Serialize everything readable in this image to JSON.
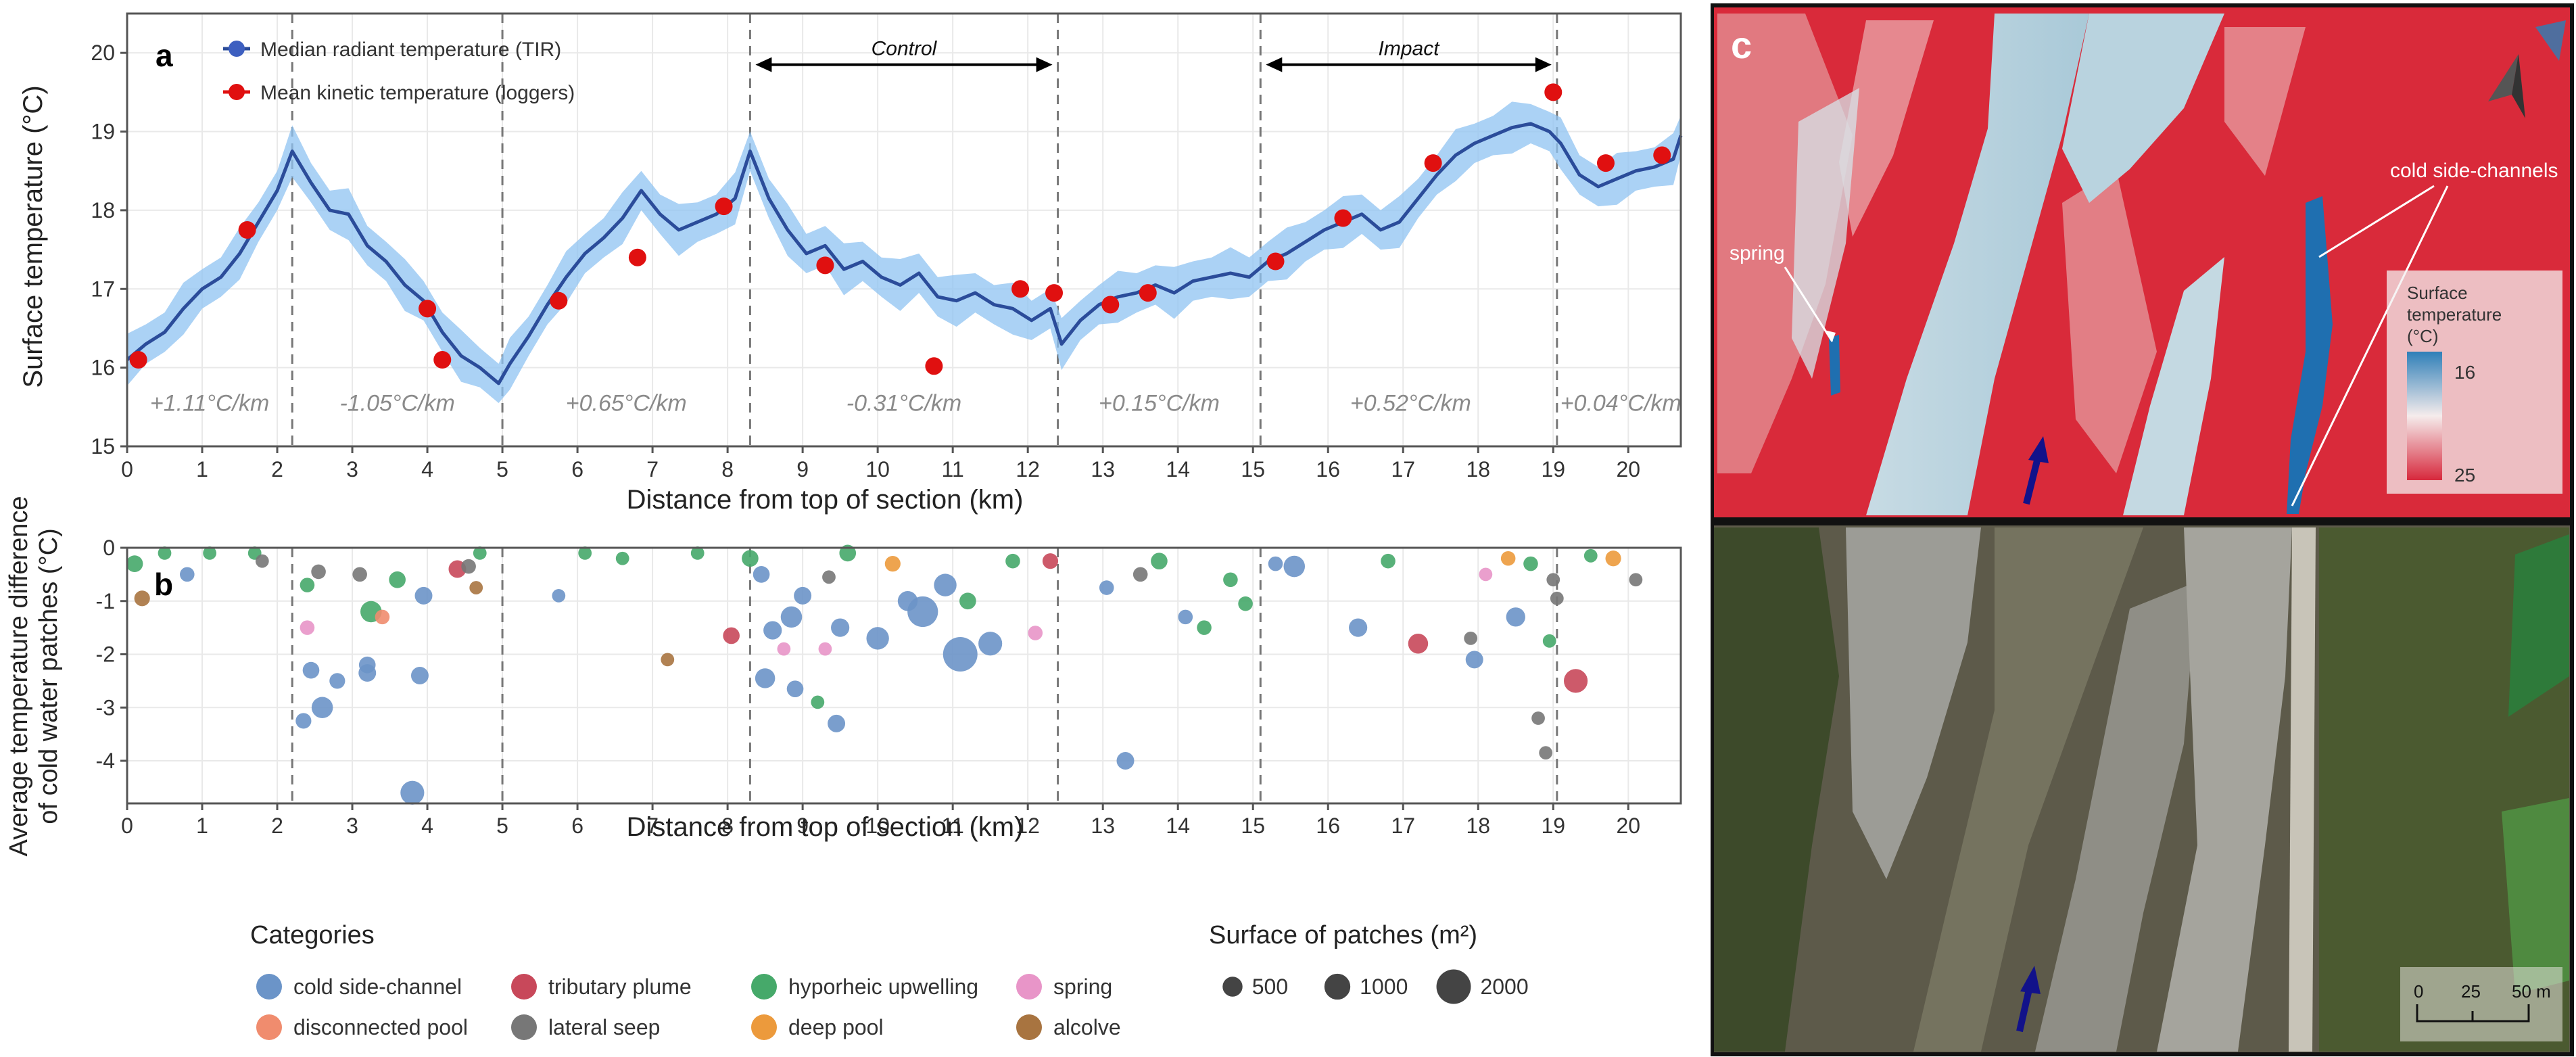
{
  "chart_data": [
    {
      "panel_label": "a",
      "type": "line",
      "ylabel": "Surface temperature (°C)",
      "xlabel": "Distance from top of section (km)",
      "xlim": [
        0,
        20.7
      ],
      "ylim": [
        15,
        20.5
      ],
      "xticks": [
        0,
        1,
        2,
        3,
        4,
        5,
        6,
        7,
        8,
        9,
        10,
        11,
        12,
        13,
        14,
        15,
        16,
        17,
        18,
        19,
        20
      ],
      "yticks": [
        15,
        16,
        17,
        18,
        19,
        20
      ],
      "segment_boundaries_km": [
        2.2,
        5.0,
        8.3,
        12.4,
        15.1,
        19.05
      ],
      "gradients": [
        {
          "label": "+1.11°C/km",
          "x": 1.1
        },
        {
          "label": "-1.05°C/km",
          "x": 3.6
        },
        {
          "label": "+0.65°C/km",
          "x": 6.65
        },
        {
          "label": "-0.31°C/km",
          "x": 10.35
        },
        {
          "label": "+0.15°C/km",
          "x": 13.75
        },
        {
          "label": "+0.52°C/km",
          "x": 17.1
        },
        {
          "label": "+0.04°C/km",
          "x": 19.9
        }
      ],
      "arrows": [
        {
          "label": "Control",
          "x0": 8.3,
          "x1": 12.4
        },
        {
          "label": "Impact",
          "x0": 15.1,
          "x1": 19.05
        }
      ],
      "legend": {
        "tir": "Median radiant temperature (TIR)",
        "loggers": "Mean kinetic temperature (loggers)"
      },
      "series_tir": {
        "name": "Median radiant temperature (TIR)",
        "color": "#2b4c9a",
        "band_color": "#8fc3f2",
        "x": [
          0,
          0.25,
          0.5,
          0.75,
          1.0,
          1.25,
          1.5,
          1.75,
          2.0,
          2.2,
          2.45,
          2.7,
          2.95,
          3.2,
          3.45,
          3.7,
          3.95,
          4.2,
          4.45,
          4.7,
          4.95,
          5.1,
          5.35,
          5.6,
          5.85,
          6.1,
          6.35,
          6.6,
          6.85,
          7.1,
          7.35,
          7.6,
          7.85,
          8.1,
          8.3,
          8.55,
          8.8,
          9.05,
          9.3,
          9.55,
          9.8,
          10.05,
          10.3,
          10.55,
          10.8,
          11.05,
          11.3,
          11.55,
          11.8,
          12.05,
          12.3,
          12.45,
          12.7,
          12.95,
          13.2,
          13.45,
          13.7,
          13.95,
          14.2,
          14.45,
          14.7,
          14.95,
          15.2,
          15.45,
          15.7,
          15.95,
          16.2,
          16.45,
          16.7,
          16.95,
          17.2,
          17.45,
          17.7,
          17.95,
          18.2,
          18.45,
          18.7,
          18.95,
          19.1,
          19.35,
          19.6,
          19.85,
          20.1,
          20.35,
          20.6,
          20.7
        ],
        "values": [
          16.1,
          16.3,
          16.45,
          16.75,
          17.0,
          17.15,
          17.45,
          17.85,
          18.25,
          18.75,
          18.35,
          18.0,
          17.95,
          17.55,
          17.35,
          17.05,
          16.85,
          16.45,
          16.15,
          16.0,
          15.8,
          16.05,
          16.4,
          16.8,
          17.15,
          17.45,
          17.65,
          17.9,
          18.25,
          17.95,
          17.75,
          17.85,
          17.95,
          18.15,
          18.75,
          18.15,
          17.75,
          17.45,
          17.55,
          17.25,
          17.35,
          17.15,
          17.05,
          17.2,
          16.9,
          16.85,
          16.95,
          16.8,
          16.75,
          16.6,
          16.75,
          16.3,
          16.6,
          16.8,
          16.9,
          16.95,
          17.05,
          16.95,
          17.1,
          17.15,
          17.2,
          17.15,
          17.35,
          17.45,
          17.6,
          17.75,
          17.85,
          17.95,
          17.75,
          17.85,
          18.15,
          18.45,
          18.7,
          18.85,
          18.95,
          19.05,
          19.1,
          19.0,
          18.85,
          18.45,
          18.3,
          18.4,
          18.5,
          18.55,
          18.65,
          18.95
        ],
        "band_halfwidth": 0.25
      },
      "series_loggers": {
        "name": "Mean kinetic temperature (loggers)",
        "color": "#e01010",
        "points": [
          [
            0.15,
            16.1
          ],
          [
            1.6,
            17.75
          ],
          [
            4.0,
            16.75
          ],
          [
            4.2,
            16.1
          ],
          [
            5.75,
            16.85
          ],
          [
            6.8,
            17.4
          ],
          [
            7.95,
            18.05
          ],
          [
            9.3,
            17.3
          ],
          [
            10.75,
            16.02
          ],
          [
            11.9,
            17.0
          ],
          [
            12.35,
            16.95
          ],
          [
            13.1,
            16.8
          ],
          [
            13.6,
            16.95
          ],
          [
            15.3,
            17.35
          ],
          [
            16.2,
            17.9
          ],
          [
            17.4,
            18.6
          ],
          [
            19.0,
            19.5
          ],
          [
            19.7,
            18.6
          ],
          [
            20.45,
            18.7
          ]
        ]
      }
    },
    {
      "panel_label": "b",
      "type": "scatter",
      "ylabel_line1": "Average temperature difference",
      "ylabel_line2": "of cold water patches (°C)",
      "xlabel": "Distance from top of section (km)",
      "xlim": [
        0,
        20.7
      ],
      "ylim": [
        -4.8,
        0
      ],
      "xticks": [
        0,
        1,
        2,
        3,
        4,
        5,
        6,
        7,
        8,
        9,
        10,
        11,
        12,
        13,
        14,
        15,
        16,
        17,
        18,
        19,
        20
      ],
      "yticks": [
        0,
        -1,
        -2,
        -3,
        -4
      ],
      "segment_boundaries_km": [
        2.2,
        5.0,
        8.3,
        12.4,
        15.1,
        19.05
      ],
      "points": [
        {
          "x": 0.1,
          "y": -0.3,
          "cat": "hyporheic upwelling",
          "s": 300
        },
        {
          "x": 0.2,
          "y": -0.95,
          "cat": "alcolve",
          "s": 250
        },
        {
          "x": 0.5,
          "y": -0.1,
          "cat": "hyporheic upwelling",
          "s": 150
        },
        {
          "x": 0.8,
          "y": -0.5,
          "cat": "cold side-channel",
          "s": 200
        },
        {
          "x": 1.1,
          "y": -0.1,
          "cat": "hyporheic upwelling",
          "s": 150
        },
        {
          "x": 1.7,
          "y": -0.1,
          "cat": "hyporheic upwelling",
          "s": 150
        },
        {
          "x": 1.8,
          "y": -0.25,
          "cat": "lateral seep",
          "s": 150
        },
        {
          "x": 2.4,
          "y": -0.7,
          "cat": "hyporheic upwelling",
          "s": 200
        },
        {
          "x": 2.4,
          "y": -1.5,
          "cat": "spring",
          "s": 200
        },
        {
          "x": 2.35,
          "y": -3.25,
          "cat": "cold side-channel",
          "s": 250
        },
        {
          "x": 2.45,
          "y": -2.3,
          "cat": "cold side-channel",
          "s": 300
        },
        {
          "x": 2.55,
          "y": -0.45,
          "cat": "lateral seep",
          "s": 200
        },
        {
          "x": 2.6,
          "y": -3.0,
          "cat": "cold side-channel",
          "s": 600
        },
        {
          "x": 2.8,
          "y": -2.5,
          "cat": "cold side-channel",
          "s": 250
        },
        {
          "x": 3.1,
          "y": -0.5,
          "cat": "lateral seep",
          "s": 200
        },
        {
          "x": 3.2,
          "y": -2.2,
          "cat": "cold side-channel",
          "s": 300
        },
        {
          "x": 3.25,
          "y": -1.2,
          "cat": "hyporheic upwelling",
          "s": 600
        },
        {
          "x": 3.4,
          "y": -1.3,
          "cat": "disconnected pool",
          "s": 200
        },
        {
          "x": 3.2,
          "y": -2.35,
          "cat": "cold side-channel",
          "s": 350
        },
        {
          "x": 3.6,
          "y": -0.6,
          "cat": "hyporheic upwelling",
          "s": 300
        },
        {
          "x": 3.8,
          "y": -4.6,
          "cat": "cold side-channel",
          "s": 800
        },
        {
          "x": 3.9,
          "y": -2.4,
          "cat": "cold side-channel",
          "s": 350
        },
        {
          "x": 3.95,
          "y": -0.9,
          "cat": "cold side-channel",
          "s": 350
        },
        {
          "x": 4.4,
          "y": -0.4,
          "cat": "tributary plume",
          "s": 350
        },
        {
          "x": 4.55,
          "y": -0.35,
          "cat": "lateral seep",
          "s": 200
        },
        {
          "x": 4.65,
          "y": -0.75,
          "cat": "alcolve",
          "s": 150
        },
        {
          "x": 4.7,
          "y": -0.1,
          "cat": "hyporheic upwelling",
          "s": 150
        },
        {
          "x": 5.75,
          "y": -0.9,
          "cat": "cold side-channel",
          "s": 150
        },
        {
          "x": 6.1,
          "y": -0.1,
          "cat": "hyporheic upwelling",
          "s": 150
        },
        {
          "x": 6.6,
          "y": -0.2,
          "cat": "hyporheic upwelling",
          "s": 150
        },
        {
          "x": 7.2,
          "y": -2.1,
          "cat": "alcolve",
          "s": 150
        },
        {
          "x": 7.6,
          "y": -0.1,
          "cat": "hyporheic upwelling",
          "s": 150
        },
        {
          "x": 8.05,
          "y": -1.65,
          "cat": "tributary plume",
          "s": 300
        },
        {
          "x": 8.3,
          "y": -0.2,
          "cat": "hyporheic upwelling",
          "s": 300
        },
        {
          "x": 8.45,
          "y": -0.5,
          "cat": "cold side-channel",
          "s": 300
        },
        {
          "x": 8.5,
          "y": -2.45,
          "cat": "cold side-channel",
          "s": 500
        },
        {
          "x": 8.6,
          "y": -1.55,
          "cat": "cold side-channel",
          "s": 400
        },
        {
          "x": 8.75,
          "y": -1.9,
          "cat": "spring",
          "s": 150
        },
        {
          "x": 8.85,
          "y": -1.3,
          "cat": "cold side-channel",
          "s": 600
        },
        {
          "x": 8.9,
          "y": -2.65,
          "cat": "cold side-channel",
          "s": 300
        },
        {
          "x": 9.0,
          "y": -0.9,
          "cat": "cold side-channel",
          "s": 350
        },
        {
          "x": 9.2,
          "y": -2.9,
          "cat": "hyporheic upwelling",
          "s": 150
        },
        {
          "x": 9.3,
          "y": -1.9,
          "cat": "spring",
          "s": 150
        },
        {
          "x": 9.35,
          "y": -0.55,
          "cat": "lateral seep",
          "s": 150
        },
        {
          "x": 9.45,
          "y": -3.3,
          "cat": "cold side-channel",
          "s": 350
        },
        {
          "x": 9.5,
          "y": -1.5,
          "cat": "cold side-channel",
          "s": 400
        },
        {
          "x": 9.6,
          "y": -0.1,
          "cat": "hyporheic upwelling",
          "s": 300
        },
        {
          "x": 10.0,
          "y": -1.7,
          "cat": "cold side-channel",
          "s": 700
        },
        {
          "x": 10.2,
          "y": -0.3,
          "cat": "deep pool",
          "s": 250
        },
        {
          "x": 10.4,
          "y": -1.0,
          "cat": "cold side-channel",
          "s": 500
        },
        {
          "x": 10.6,
          "y": -1.2,
          "cat": "cold side-channel",
          "s": 1500
        },
        {
          "x": 10.9,
          "y": -0.7,
          "cat": "cold side-channel",
          "s": 700
        },
        {
          "x": 11.1,
          "y": -2.0,
          "cat": "cold side-channel",
          "s": 2000
        },
        {
          "x": 11.2,
          "y": -1.0,
          "cat": "hyporheic upwelling",
          "s": 300
        },
        {
          "x": 11.5,
          "y": -1.8,
          "cat": "cold side-channel",
          "s": 800
        },
        {
          "x": 11.8,
          "y": -0.25,
          "cat": "hyporheic upwelling",
          "s": 200
        },
        {
          "x": 12.1,
          "y": -1.6,
          "cat": "spring",
          "s": 200
        },
        {
          "x": 12.3,
          "y": -0.25,
          "cat": "tributary plume",
          "s": 250
        },
        {
          "x": 13.05,
          "y": -0.75,
          "cat": "cold side-channel",
          "s": 200
        },
        {
          "x": 13.3,
          "y": -4.0,
          "cat": "cold side-channel",
          "s": 350
        },
        {
          "x": 13.5,
          "y": -0.5,
          "cat": "lateral seep",
          "s": 200
        },
        {
          "x": 13.75,
          "y": -0.25,
          "cat": "hyporheic upwelling",
          "s": 300
        },
        {
          "x": 14.1,
          "y": -1.3,
          "cat": "cold side-channel",
          "s": 200
        },
        {
          "x": 14.35,
          "y": -1.5,
          "cat": "hyporheic upwelling",
          "s": 200
        },
        {
          "x": 14.7,
          "y": -0.6,
          "cat": "hyporheic upwelling",
          "s": 200
        },
        {
          "x": 14.9,
          "y": -1.05,
          "cat": "hyporheic upwelling",
          "s": 200
        },
        {
          "x": 15.3,
          "y": -0.3,
          "cat": "cold side-channel",
          "s": 200
        },
        {
          "x": 15.55,
          "y": -0.35,
          "cat": "cold side-channel",
          "s": 600
        },
        {
          "x": 16.4,
          "y": -1.5,
          "cat": "cold side-channel",
          "s": 400
        },
        {
          "x": 16.8,
          "y": -0.25,
          "cat": "hyporheic upwelling",
          "s": 200
        },
        {
          "x": 17.2,
          "y": -1.8,
          "cat": "tributary plume",
          "s": 500
        },
        {
          "x": 17.9,
          "y": -1.7,
          "cat": "lateral seep",
          "s": 150
        },
        {
          "x": 17.95,
          "y": -2.1,
          "cat": "cold side-channel",
          "s": 350
        },
        {
          "x": 18.1,
          "y": -0.5,
          "cat": "spring",
          "s": 150
        },
        {
          "x": 18.4,
          "y": -0.2,
          "cat": "deep pool",
          "s": 200
        },
        {
          "x": 18.5,
          "y": -1.3,
          "cat": "cold side-channel",
          "s": 450
        },
        {
          "x": 18.7,
          "y": -0.3,
          "cat": "hyporheic upwelling",
          "s": 200
        },
        {
          "x": 18.8,
          "y": -3.2,
          "cat": "lateral seep",
          "s": 150
        },
        {
          "x": 18.9,
          "y": -3.85,
          "cat": "lateral seep",
          "s": 150
        },
        {
          "x": 18.95,
          "y": -1.75,
          "cat": "hyporheic upwelling",
          "s": 150
        },
        {
          "x": 19.0,
          "y": -0.6,
          "cat": "lateral seep",
          "s": 150
        },
        {
          "x": 19.05,
          "y": -0.95,
          "cat": "lateral seep",
          "s": 150
        },
        {
          "x": 19.3,
          "y": -2.5,
          "cat": "tributary plume",
          "s": 800
        },
        {
          "x": 19.5,
          "y": -0.15,
          "cat": "hyporheic upwelling",
          "s": 150
        },
        {
          "x": 19.8,
          "y": -0.2,
          "cat": "deep pool",
          "s": 250
        },
        {
          "x": 20.1,
          "y": -0.6,
          "cat": "lateral seep",
          "s": 150
        }
      ]
    }
  ],
  "legend_bottom": {
    "categories_title": "Categories",
    "categories": [
      {
        "name": "cold side-channel",
        "color": "#6b94c8"
      },
      {
        "name": "disconnected pool",
        "color": "#f08c6e"
      },
      {
        "name": "tributary plume",
        "color": "#c8485a"
      },
      {
        "name": "lateral seep",
        "color": "#777777"
      },
      {
        "name": "hyporheic upwelling",
        "color": "#46a96a"
      },
      {
        "name": "deep pool",
        "color": "#ec9a3c"
      },
      {
        "name": "spring",
        "color": "#e895c8"
      },
      {
        "name": "alcolve",
        "color": "#a87440"
      }
    ],
    "size_title": "Surface of patches (m²)",
    "sizes": [
      {
        "label": "500",
        "value": 500
      },
      {
        "label": "1000",
        "value": 1000
      },
      {
        "label": "2000",
        "value": 2000
      }
    ]
  },
  "panel_c": {
    "label": "c",
    "annotations": {
      "spring": "spring",
      "cold_side_channels": "cold side-channels"
    },
    "colorbar": {
      "title_line1": "Surface",
      "title_line2": "temperature",
      "title_line3": "(°C)",
      "min_label": "16",
      "max_label": "25",
      "color_cold": "#2f7fb8",
      "color_mid": "#f5ecec",
      "color_hot": "#d7283c"
    },
    "scalebar": {
      "labels": [
        "0",
        "25",
        "50 m"
      ]
    }
  }
}
